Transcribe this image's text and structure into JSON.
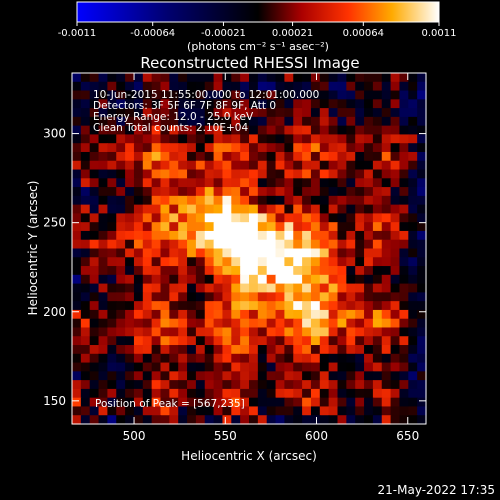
{
  "colorbar": {
    "ticks": [
      -0.0011,
      -0.00064,
      -0.00021,
      0.00021,
      0.00064,
      0.0011
    ],
    "tick_labels": [
      "-0.0011",
      "-0.00064",
      "-0.00021",
      "0.00021",
      "0.00064",
      "0.0011"
    ],
    "unit_label": "(photons cm⁻² s⁻¹ asec⁻²)",
    "range": [
      -0.0011,
      0.0011
    ]
  },
  "chart_data": {
    "type": "heatmap",
    "title": "Reconstructed RHESSI Image",
    "xlabel": "Heliocentric X (arcsec)",
    "ylabel": "Heliocentric Y (arcsec)",
    "xlim": [
      466,
      660
    ],
    "ylim": [
      137,
      334
    ],
    "xticks": [
      500,
      550,
      600,
      650
    ],
    "yticks": [
      150,
      200,
      250,
      300
    ],
    "colorscale": "blue-black-red-yellow-white",
    "peak": [
      567,
      235
    ],
    "annotations": [
      "10-Jun-2015 11:55:00.000 to 12:01:00.000",
      "Detectors: 3F 5F 6F 7F 8F 9F, Att 0",
      "Energy Range: 12.0 - 25.0 keV",
      "Clean     Total counts: 2.10E+04"
    ],
    "peak_label": "Position of Peak = [567,235]"
  },
  "footer": {
    "timestamp": "21-May-2022 17:35"
  }
}
